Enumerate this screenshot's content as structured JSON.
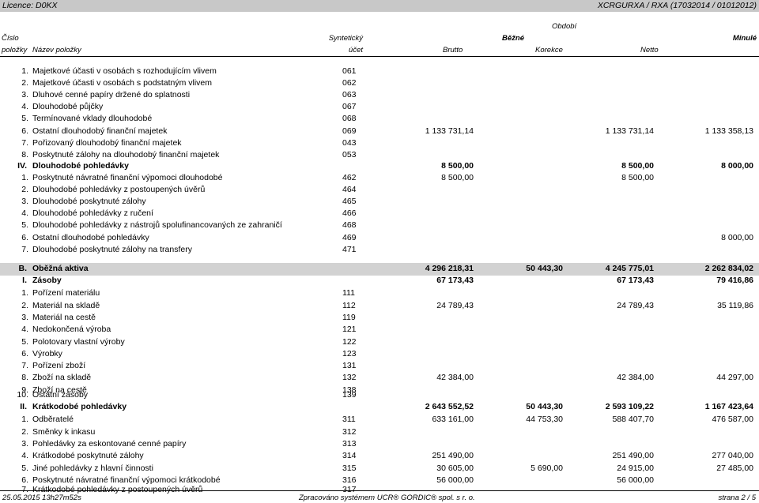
{
  "top": {
    "licence": "Licence: D0KX",
    "report": "XCRGURXA / RXA (17032014 / 01012012)"
  },
  "header": {
    "cislo": "Číslo",
    "polozky": "položky",
    "nazev": "Název položky",
    "syntet1": "Syntetický",
    "syntet2": "účet",
    "obdobi": "Období",
    "bezne": "Běžné",
    "minule": "Minulé",
    "brutto": "Brutto",
    "korekce": "Korekce",
    "netto": "Netto"
  },
  "rows": [
    {
      "type": "item",
      "num": "1.",
      "name": "Majetkové účasti v osobách s rozhodujícím vlivem",
      "acct": "061",
      "brutto": "",
      "korekce": "",
      "netto": "",
      "minule": ""
    },
    {
      "type": "item",
      "num": "2.",
      "name": "Majetkové účasti v osobách s podstatným vlivem",
      "acct": "062",
      "brutto": "",
      "korekce": "",
      "netto": "",
      "minule": ""
    },
    {
      "type": "item",
      "num": "3.",
      "name": "Dluhové cenné papíry držené do splatnosti",
      "acct": "063",
      "brutto": "",
      "korekce": "",
      "netto": "",
      "minule": ""
    },
    {
      "type": "item",
      "num": "4.",
      "name": "Dlouhodobé půjčky",
      "acct": "067",
      "brutto": "",
      "korekce": "",
      "netto": "",
      "minule": ""
    },
    {
      "type": "item",
      "num": "5.",
      "name": "Termínované vklady dlouhodobé",
      "acct": "068",
      "brutto": "",
      "korekce": "",
      "netto": "",
      "minule": ""
    },
    {
      "type": "item",
      "num": "6.",
      "name": "Ostatní dlouhodobý finanční majetek",
      "acct": "069",
      "brutto": "1 133 731,14",
      "korekce": "",
      "netto": "1 133 731,14",
      "minule": "1 133 358,13"
    },
    {
      "type": "item",
      "num": "7.",
      "name": "Pořizovaný dlouhodobý finanční majetek",
      "acct": "043",
      "brutto": "",
      "korekce": "",
      "netto": "",
      "minule": ""
    },
    {
      "type": "item",
      "num": "8.",
      "name": "Poskytnuté zálohy na dlouhodobý finanční majetek",
      "acct": "053",
      "brutto": "",
      "korekce": "",
      "netto": "",
      "minule": ""
    },
    {
      "type": "group",
      "num": "IV.",
      "name": "Dlouhodobé pohledávky",
      "acct": "",
      "brutto": "8 500,00",
      "korekce": "",
      "netto": "8 500,00",
      "minule": "8 000,00"
    },
    {
      "type": "item",
      "num": "1.",
      "name": "Poskytnuté návratné finanční výpomoci dlouhodobé",
      "acct": "462",
      "brutto": "8 500,00",
      "korekce": "",
      "netto": "8 500,00",
      "minule": ""
    },
    {
      "type": "item",
      "num": "2.",
      "name": "Dlouhodobé pohledávky z postoupených úvěrů",
      "acct": "464",
      "brutto": "",
      "korekce": "",
      "netto": "",
      "minule": ""
    },
    {
      "type": "item",
      "num": "3.",
      "name": "Dlouhodobé poskytnuté zálohy",
      "acct": "465",
      "brutto": "",
      "korekce": "",
      "netto": "",
      "minule": ""
    },
    {
      "type": "item",
      "num": "4.",
      "name": "Dlouhodobé pohledávky z ručení",
      "acct": "466",
      "brutto": "",
      "korekce": "",
      "netto": "",
      "minule": ""
    },
    {
      "type": "item",
      "num": "5.",
      "name": "Dlouhodobé pohledávky z nástrojů spolufinancovaných ze zahraničí",
      "acct": "468",
      "brutto": "",
      "korekce": "",
      "netto": "",
      "minule": ""
    },
    {
      "type": "item",
      "num": "6.",
      "name": "Ostatní dlouhodobé pohledávky",
      "acct": "469",
      "brutto": "",
      "korekce": "",
      "netto": "",
      "minule": "8 000,00"
    },
    {
      "type": "item",
      "num": "7.",
      "name": "Dlouhodobé poskytnuté zálohy na transfery",
      "acct": "471",
      "brutto": "",
      "korekce": "",
      "netto": "",
      "minule": ""
    },
    {
      "type": "section",
      "num": "B.",
      "name": "Oběžná aktiva",
      "acct": "",
      "brutto": "4 296 218,31",
      "korekce": "50 443,30",
      "netto": "4 245 775,01",
      "minule": "2 262 834,02"
    },
    {
      "type": "group",
      "num": "I.",
      "name": "Zásoby",
      "acct": "",
      "brutto": "67 173,43",
      "korekce": "",
      "netto": "67 173,43",
      "minule": "79 416,86"
    },
    {
      "type": "item",
      "num": "1.",
      "name": "Pořízení materiálu",
      "acct": "111",
      "brutto": "",
      "korekce": "",
      "netto": "",
      "minule": ""
    },
    {
      "type": "item",
      "num": "2.",
      "name": "Materiál na skladě",
      "acct": "112",
      "brutto": "24 789,43",
      "korekce": "",
      "netto": "24 789,43",
      "minule": "35 119,86"
    },
    {
      "type": "item",
      "num": "3.",
      "name": "Materiál na cestě",
      "acct": "119",
      "brutto": "",
      "korekce": "",
      "netto": "",
      "minule": ""
    },
    {
      "type": "item",
      "num": "4.",
      "name": "Nedokončená výroba",
      "acct": "121",
      "brutto": "",
      "korekce": "",
      "netto": "",
      "minule": ""
    },
    {
      "type": "item",
      "num": "5.",
      "name": "Polotovary vlastní výroby",
      "acct": "122",
      "brutto": "",
      "korekce": "",
      "netto": "",
      "minule": ""
    },
    {
      "type": "item",
      "num": "6.",
      "name": "Výrobky",
      "acct": "123",
      "brutto": "",
      "korekce": "",
      "netto": "",
      "minule": ""
    },
    {
      "type": "item",
      "num": "7.",
      "name": "Pořízení zboží",
      "acct": "131",
      "brutto": "",
      "korekce": "",
      "netto": "",
      "minule": ""
    },
    {
      "type": "item",
      "num": "8.",
      "name": "Zboží na skladě",
      "acct": "132",
      "brutto": "42 384,00",
      "korekce": "",
      "netto": "42 384,00",
      "minule": "44 297,00"
    },
    {
      "type": "item",
      "num": "9.",
      "name": "Zboží na cestě",
      "acct": "138",
      "brutto": "",
      "korekce": "",
      "netto": "",
      "minule": ""
    },
    {
      "type": "item",
      "num": "10.",
      "name": "Ostatní zásoby",
      "acct": "139",
      "brutto": "",
      "korekce": "",
      "netto": "",
      "minule": ""
    },
    {
      "type": "group",
      "num": "II.",
      "name": "Krátkodobé pohledávky",
      "acct": "",
      "brutto": "2 643 552,52",
      "korekce": "50 443,30",
      "netto": "2 593 109,22",
      "minule": "1 167 423,64"
    },
    {
      "type": "item",
      "num": "1.",
      "name": "Odběratelé",
      "acct": "311",
      "brutto": "633 161,00",
      "korekce": "44 753,30",
      "netto": "588 407,70",
      "minule": "476 587,00"
    },
    {
      "type": "item",
      "num": "2.",
      "name": "Směnky k inkasu",
      "acct": "312",
      "brutto": "",
      "korekce": "",
      "netto": "",
      "minule": ""
    },
    {
      "type": "item",
      "num": "3.",
      "name": "Pohledávky za eskontované cenné papíry",
      "acct": "313",
      "brutto": "",
      "korekce": "",
      "netto": "",
      "minule": ""
    },
    {
      "type": "item",
      "num": "4.",
      "name": "Krátkodobé poskytnuté zálohy",
      "acct": "314",
      "brutto": "251 490,00",
      "korekce": "",
      "netto": "251 490,00",
      "minule": "277 040,00"
    },
    {
      "type": "item",
      "num": "5.",
      "name": "Jiné pohledávky z hlavní činnosti",
      "acct": "315",
      "brutto": "30 605,00",
      "korekce": "5 690,00",
      "netto": "24 915,00",
      "minule": "27 485,00"
    },
    {
      "type": "item",
      "num": "6.",
      "name": "Poskytnuté návratné finanční výpomoci krátkodobé",
      "acct": "316",
      "brutto": "56 000,00",
      "korekce": "",
      "netto": "56 000,00",
      "minule": ""
    },
    {
      "type": "item",
      "num": "7.",
      "name": "Krátkodobé pohledávky z postoupených úvěrů",
      "acct": "317",
      "brutto": "",
      "korekce": "",
      "netto": "",
      "minule": ""
    }
  ],
  "footer": {
    "datetime": "25.05.2015 13h27m52s",
    "system": "Zpracováno systémem UCR® GORDIC® spol. s r. o.",
    "page": "strana 2 / 5"
  }
}
